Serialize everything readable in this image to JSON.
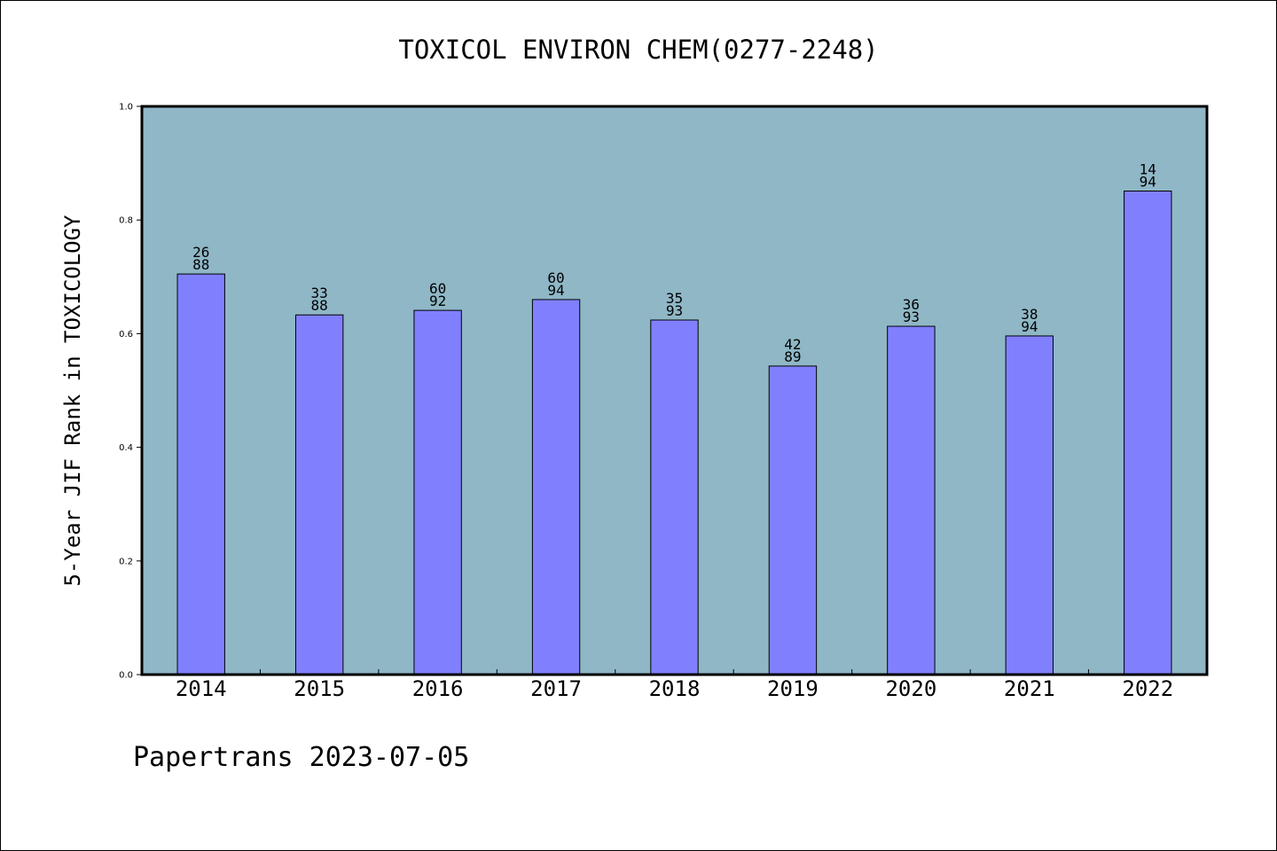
{
  "chart_data": {
    "type": "bar",
    "title": "TOXICOL ENVIRON CHEM(0277-2248)",
    "ylabel": "5-Year JIF Rank in TOXICOLOGY",
    "xlabel": "",
    "categories": [
      "2014",
      "2015",
      "2016",
      "2017",
      "2018",
      "2019",
      "2020",
      "2021",
      "2022"
    ],
    "values": [
      0.705,
      0.633,
      0.641,
      0.66,
      0.624,
      0.543,
      0.613,
      0.596,
      0.851
    ],
    "data_labels": [
      [
        "26",
        "88"
      ],
      [
        "33",
        "88"
      ],
      [
        "60",
        "92"
      ],
      [
        "60",
        "94"
      ],
      [
        "35",
        "93"
      ],
      [
        "42",
        "89"
      ],
      [
        "36",
        "93"
      ],
      [
        "38",
        "94"
      ],
      [
        "14",
        "94"
      ]
    ],
    "ylim": [
      0.0,
      1.0
    ],
    "yticks": [
      "0.0",
      "0.2",
      "0.4",
      "0.6",
      "0.8",
      "1.0"
    ],
    "grid": false,
    "colors": {
      "plot_background": "#8fb7c6",
      "bar_fill": "#8080ff",
      "bar_edge": "#000000"
    }
  },
  "footer": {
    "text": "Papertrans 2023-07-05"
  }
}
